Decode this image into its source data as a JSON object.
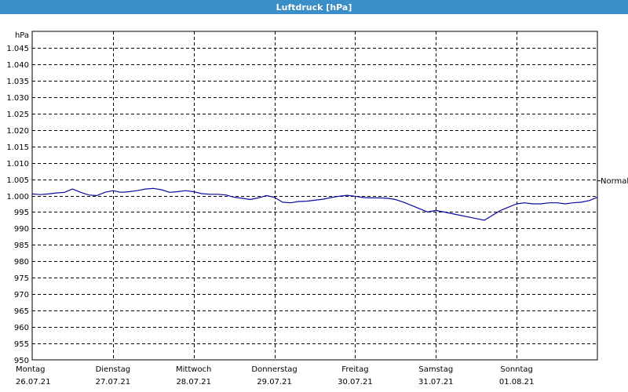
{
  "window": {
    "title": "Luftdruck [hPa]"
  },
  "chart_data": {
    "type": "line",
    "title": "Luftdruck [hPa]",
    "ylabel": "hPa",
    "xlabel": "",
    "ylim": [
      950,
      1050
    ],
    "yticks": [
      950,
      955,
      960,
      965,
      970,
      975,
      980,
      985,
      990,
      995,
      1000,
      1005,
      1010,
      1015,
      1020,
      1025,
      1030,
      1035,
      1040,
      1045
    ],
    "ytick_labels": [
      "950",
      "955",
      "960",
      "965",
      "970",
      "975",
      "980",
      "985",
      "990",
      "995",
      "1.000",
      "1.005",
      "1.010",
      "1.015",
      "1.020",
      "1.025",
      "1.030",
      "1.035",
      "1.040",
      "1.045"
    ],
    "grid": true,
    "days": [
      {
        "weekday": "Montag",
        "date": "26.07.21"
      },
      {
        "weekday": "Dienstag",
        "date": "27.07.21"
      },
      {
        "weekday": "Mittwoch",
        "date": "28.07.21"
      },
      {
        "weekday": "Donnerstag",
        "date": "29.07.21"
      },
      {
        "weekday": "Freitag",
        "date": "30.07.21"
      },
      {
        "weekday": "Samstag",
        "date": "31.07.21"
      },
      {
        "weekday": "Sonntag",
        "date": "01.08.21"
      }
    ],
    "reference": {
      "label": "Normal",
      "value": 1004.5
    },
    "series": [
      {
        "color": "#0a0a9e",
        "x": [
          0,
          0.1,
          0.2,
          0.3,
          0.4,
          0.5,
          0.6,
          0.7,
          0.8,
          0.9,
          1.0,
          1.1,
          1.2,
          1.3,
          1.4,
          1.5,
          1.6,
          1.7,
          1.8,
          1.9,
          2.0,
          2.1,
          2.2,
          2.3,
          2.4,
          2.5,
          2.6,
          2.7,
          2.8,
          2.9,
          3.0,
          3.1,
          3.2,
          3.3,
          3.4,
          3.5,
          3.6,
          3.7,
          3.8,
          3.9,
          4.0,
          4.1,
          4.2,
          4.3,
          4.4,
          4.5,
          4.6,
          4.7,
          4.8,
          4.9,
          5.0,
          5.1,
          5.2,
          5.3,
          5.4,
          5.5,
          5.6,
          5.7,
          5.8,
          5.9,
          6.0,
          6.1,
          6.2,
          6.3,
          6.4,
          6.5,
          6.6,
          6.7,
          6.8,
          6.9,
          7.0
        ],
        "values": [
          1000.5,
          1000.3,
          1000.5,
          1000.8,
          1001.0,
          1002.0,
          1001.0,
          1000.2,
          1000.0,
          1001.0,
          1001.5,
          1001.0,
          1001.2,
          1001.5,
          1002.0,
          1002.2,
          1001.8,
          1001.0,
          1001.2,
          1001.5,
          1001.2,
          1000.6,
          1000.4,
          1000.4,
          1000.2,
          999.5,
          999.2,
          998.8,
          999.3,
          1000.0,
          999.5,
          998.0,
          997.8,
          998.2,
          998.3,
          998.6,
          998.9,
          999.4,
          999.8,
          1000.1,
          999.8,
          999.4,
          999.3,
          999.3,
          999.2,
          998.8,
          998.0,
          997.0,
          996.0,
          995.0,
          995.5,
          995.0,
          994.5,
          994.0,
          993.5,
          993.0,
          992.5,
          994.0,
          995.5,
          996.5,
          997.5,
          997.8,
          997.5,
          997.5,
          997.8,
          997.8,
          997.5,
          997.8,
          998.0,
          998.5,
          999.5
        ]
      }
    ]
  }
}
